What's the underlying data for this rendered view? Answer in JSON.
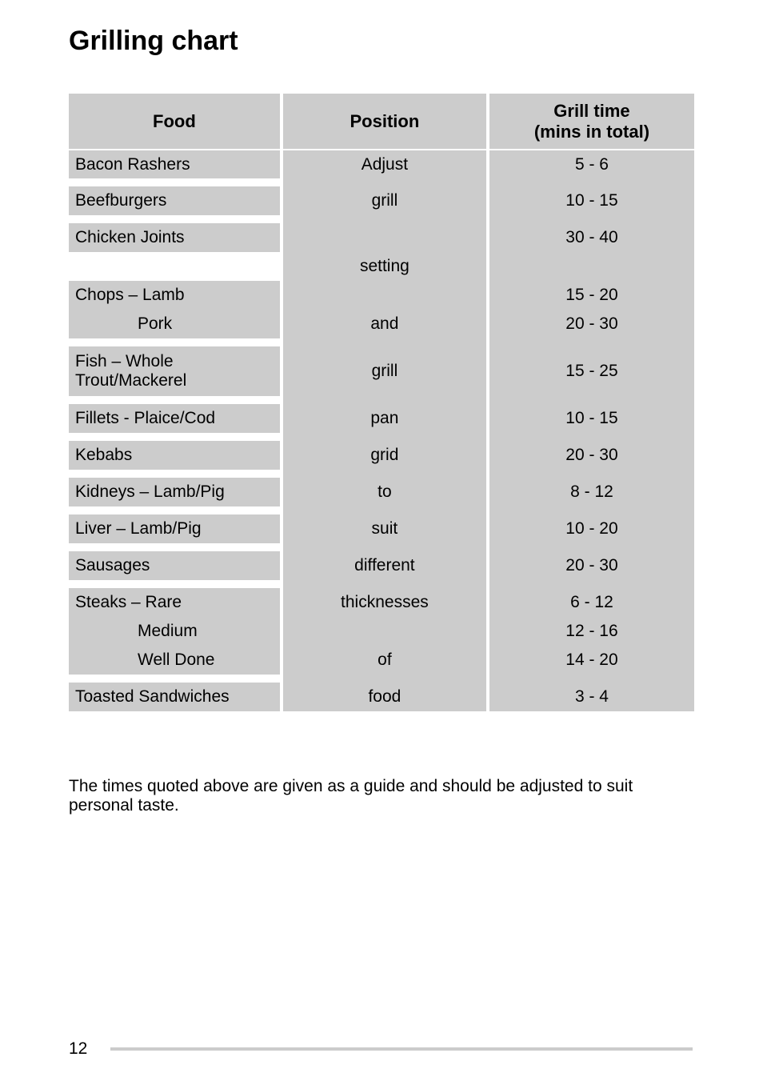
{
  "title": "Grilling chart",
  "table": {
    "headers": {
      "food": "Food",
      "position": "Position",
      "time": "Grill time\n(mins in total)"
    },
    "rows": [
      {
        "kind": "data",
        "food": "Bacon Rashers",
        "position": "Adjust",
        "time": "5 - 6"
      },
      {
        "kind": "spacer",
        "food_white": true
      },
      {
        "kind": "data",
        "food": "Beefburgers",
        "position": "grill",
        "time": "10 - 15"
      },
      {
        "kind": "spacer",
        "food_white": true
      },
      {
        "kind": "data",
        "food": "Chicken Joints",
        "position": "",
        "time": "30 - 40"
      },
      {
        "kind": "data",
        "food": "",
        "position": "setting",
        "time": "",
        "food_white": true
      },
      {
        "kind": "data",
        "food": "Chops –  Lamb",
        "position": "",
        "time": "15 - 20"
      },
      {
        "kind": "data",
        "food": "Pork",
        "indent": true,
        "position": "and",
        "time": "20 - 30"
      },
      {
        "kind": "spacer",
        "food_white": true
      },
      {
        "kind": "data",
        "tall": true,
        "food": "Fish – Whole\nTrout/Mackerel",
        "position": "grill",
        "time": "15 - 25"
      },
      {
        "kind": "spacer",
        "food_white": true
      },
      {
        "kind": "data",
        "food": "Fillets - Plaice/Cod",
        "position": "pan",
        "time": "10 - 15"
      },
      {
        "kind": "spacer",
        "food_white": true
      },
      {
        "kind": "data",
        "food": "Kebabs",
        "position": "grid",
        "time": "20 - 30"
      },
      {
        "kind": "spacer",
        "food_white": true
      },
      {
        "kind": "data",
        "food": "Kidneys – Lamb/Pig",
        "position": "to",
        "time": "8 - 12"
      },
      {
        "kind": "spacer",
        "food_white": true
      },
      {
        "kind": "data",
        "food": "Liver –     Lamb/Pig",
        "position": "suit",
        "time": "10 - 20"
      },
      {
        "kind": "spacer",
        "food_white": true
      },
      {
        "kind": "data",
        "food": "Sausages",
        "position": "different",
        "time": "20 - 30"
      },
      {
        "kind": "spacer",
        "food_white": true
      },
      {
        "kind": "data",
        "food": "Steaks –  Rare",
        "position": "thicknesses",
        "time": "6 - 12"
      },
      {
        "kind": "data",
        "food": "Medium",
        "indent": true,
        "position": "",
        "time": "12 - 16"
      },
      {
        "kind": "data",
        "food": "Well Done",
        "indent": true,
        "position": "of",
        "time": "14 - 20"
      },
      {
        "kind": "spacer",
        "food_white": true
      },
      {
        "kind": "data",
        "food": "Toasted Sandwiches",
        "position": "food",
        "time": "3 - 4"
      }
    ]
  },
  "note": "The times quoted above are given as a guide and should be adjusted to suit personal taste.",
  "page_number": "12",
  "colors": {
    "cell_bg": "#cccccc",
    "page_bg": "#ffffff",
    "text": "#000000",
    "footer_line": "#cccccc"
  },
  "typography": {
    "title_fontsize": 34,
    "cell_fontsize": 21,
    "header_fontsize": 22,
    "note_fontsize": 21
  }
}
